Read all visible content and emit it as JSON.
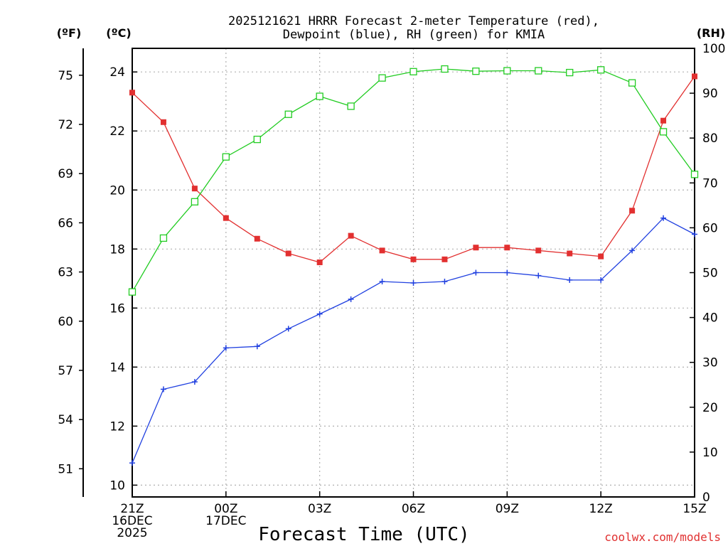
{
  "chart_data": {
    "type": "line",
    "title": [
      "2025121621 HRRR Forecast 2-meter Temperature (red),",
      "Dewpoint (blue), RH (green) for KMIA"
    ],
    "xlabel": "Forecast Time (UTC)",
    "credit": "coolwx.com/models",
    "units": {
      "fahrenheit": "(ºF)",
      "celsius": "(ºC)",
      "rh": "(RH)"
    },
    "x_hours": [
      0,
      1,
      2,
      3,
      4,
      5,
      6,
      7,
      8,
      9,
      10,
      11,
      12,
      13,
      14,
      15,
      16,
      17,
      18
    ],
    "x_ticks": [
      {
        "hour": 0,
        "lines": [
          "21Z",
          "16DEC",
          "2025"
        ]
      },
      {
        "hour": 3,
        "lines": [
          "00Z",
          "17DEC"
        ]
      },
      {
        "hour": 6,
        "lines": [
          "03Z"
        ]
      },
      {
        "hour": 9,
        "lines": [
          "06Z"
        ]
      },
      {
        "hour": 12,
        "lines": [
          "09Z"
        ]
      },
      {
        "hour": 15,
        "lines": [
          "12Z"
        ]
      },
      {
        "hour": 18,
        "lines": [
          "15Z"
        ]
      }
    ],
    "celsius_axis": {
      "range": [
        9.6,
        24.8
      ],
      "ticks": [
        10,
        12,
        14,
        16,
        18,
        20,
        22,
        24
      ]
    },
    "fahrenheit_axis": {
      "ticks": [
        51,
        54,
        57,
        60,
        63,
        66,
        69,
        72,
        75
      ]
    },
    "rh_axis": {
      "range": [
        0,
        100
      ],
      "ticks": [
        0,
        10,
        20,
        30,
        40,
        50,
        60,
        70,
        80,
        90,
        100
      ]
    },
    "series": [
      {
        "name": "2-meter Temperature",
        "unit": "C",
        "color": "#e23030",
        "marker": "filled-square",
        "values": [
          23.3,
          22.3,
          20.05,
          19.05,
          18.35,
          17.85,
          17.55,
          18.45,
          17.95,
          17.65,
          17.65,
          18.05,
          18.05,
          17.95,
          17.85,
          17.75,
          19.3,
          22.35,
          23.85
        ]
      },
      {
        "name": "Dewpoint",
        "unit": "C",
        "color": "#2040e0",
        "marker": "plus",
        "values": [
          10.75,
          13.25,
          13.5,
          14.65,
          14.7,
          15.3,
          15.8,
          16.3,
          16.9,
          16.85,
          16.9,
          17.2,
          17.2,
          17.1,
          16.95,
          16.95,
          17.95,
          19.05,
          18.5
        ]
      },
      {
        "name": "RH",
        "unit": "%",
        "color": "#22cc22",
        "marker": "hollow-square",
        "values": [
          45.7,
          57.7,
          65.8,
          75.8,
          79.7,
          85.3,
          89.3,
          87.1,
          93.4,
          94.8,
          95.4,
          94.9,
          95.0,
          95.0,
          94.6,
          95.2,
          92.3,
          81.4,
          71.9
        ]
      }
    ]
  }
}
